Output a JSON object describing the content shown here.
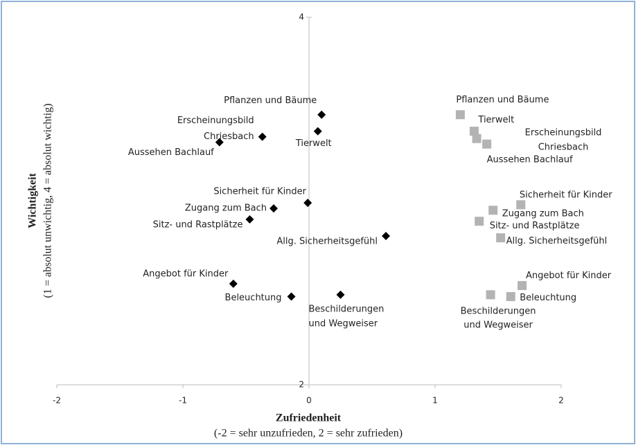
{
  "chart_data": {
    "type": "scatter",
    "xlabel": "Zufriedenheit",
    "xlabel_note": "(-2 = sehr unzufrieden, 2 = sehr zufrieden)",
    "ylabel": "Wichtigkeit",
    "ylabel_note": "(1 = absolut unwichtig, 4 = absolut wichtig)",
    "xlim": [
      -2,
      2
    ],
    "xticks": [
      -2,
      -1,
      0,
      1,
      2
    ],
    "ylim": [
      2,
      4
    ],
    "yticks": [
      2,
      4
    ],
    "series": [
      {
        "color": "#000000",
        "marker": "diamond",
        "labels": [
          [
            "Pflanzen und Bäume"
          ],
          [
            "Tierwelt"
          ],
          [
            "Erscheinungsbild",
            "Chriesbach"
          ],
          [
            "Aussehen Bachlauf"
          ],
          [
            "Sicherheit für Kinder"
          ],
          [
            "Zugang zum Bach"
          ],
          [
            "Sitz- und Rastplätze"
          ],
          [
            "Allg. Sicherheitsgefühl"
          ],
          [
            "Angebot für Kinder"
          ],
          [
            "Beleuchtung"
          ],
          [
            "Beschilderungen",
            "und Wegweiser"
          ]
        ],
        "x": [
          0.1,
          0.07,
          -0.37,
          -0.71,
          -0.01,
          -0.28,
          -0.47,
          0.61,
          -0.6,
          -0.14,
          0.25
        ],
        "values": [
          3.47,
          3.38,
          3.35,
          3.32,
          2.99,
          2.96,
          2.9,
          2.81,
          2.55,
          2.48,
          2.49
        ]
      },
      {
        "color": "#b3b3b3",
        "marker": "square",
        "labels": [
          [
            "Pflanzen und Bäume"
          ],
          [
            "Tierwelt"
          ],
          [
            "Erscheinungsbild",
            "Chriesbach"
          ],
          [
            "Aussehen Bachlauf"
          ],
          [
            "Sicherheit für Kinder"
          ],
          [
            "Zugang zum Bach"
          ],
          [
            "Sitz- und Rastplätze"
          ],
          [
            "Allg. Sicherheitsgefühl"
          ],
          [
            "Angebot für Kinder"
          ],
          [
            "Beleuchtung"
          ],
          [
            "Beschilderungen",
            "und Wegweiser"
          ]
        ],
        "x": [
          1.2,
          1.31,
          1.33,
          1.41,
          1.68,
          1.46,
          1.35,
          1.52,
          1.69,
          1.6,
          1.44
        ],
        "values": [
          3.47,
          3.38,
          3.34,
          3.31,
          2.98,
          2.95,
          2.89,
          2.8,
          2.54,
          2.48,
          2.49
        ]
      }
    ]
  }
}
